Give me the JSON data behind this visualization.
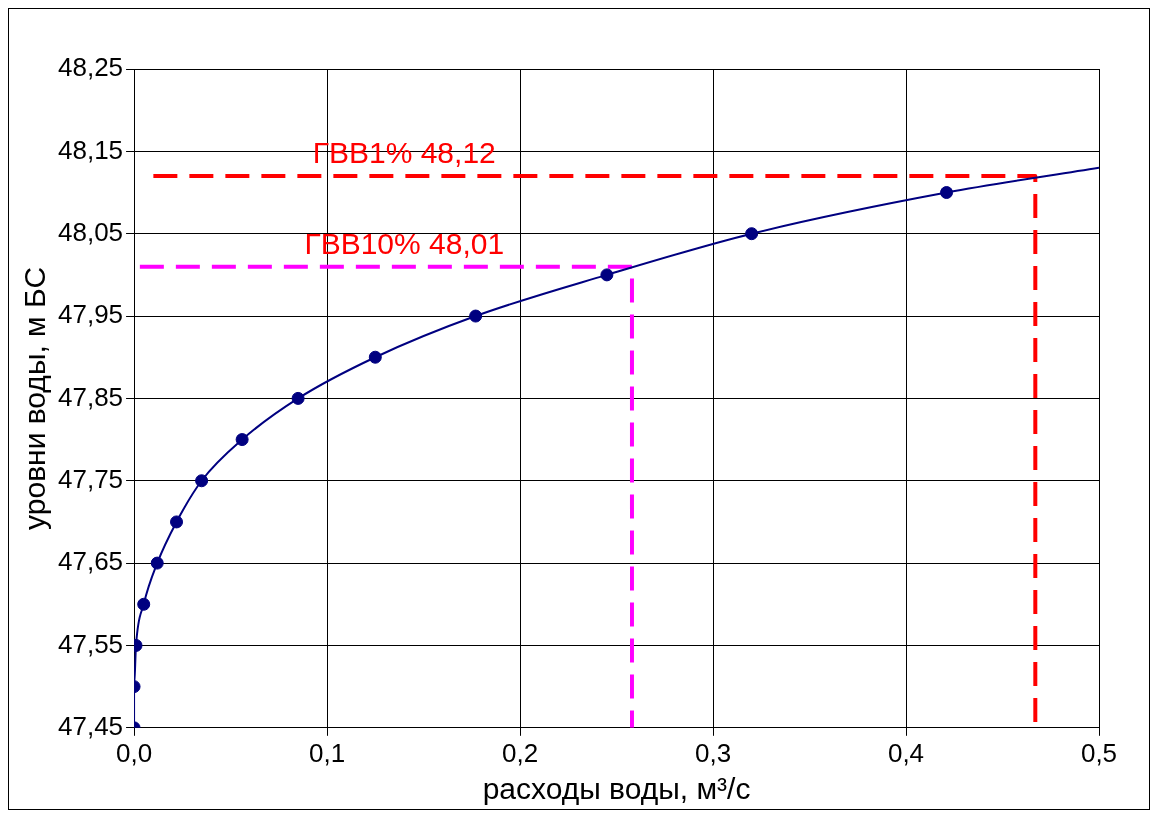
{
  "chart_data": {
    "type": "line",
    "xlabel": "расходы воды, м³/с",
    "ylabel": "уровни воды, м БС",
    "xlim": [
      0,
      0.5
    ],
    "ylim": [
      47.45,
      48.25
    ],
    "xticks": [
      {
        "value": 0,
        "label": "0,0"
      },
      {
        "value": 0.1,
        "label": "0,1"
      },
      {
        "value": 0.2,
        "label": "0,2"
      },
      {
        "value": 0.3,
        "label": "0,3"
      },
      {
        "value": 0.4,
        "label": "0,4"
      },
      {
        "value": 0.5,
        "label": "0,5"
      }
    ],
    "yticks": [
      {
        "value": 47.45,
        "label": "47,45"
      },
      {
        "value": 47.55,
        "label": "47,55"
      },
      {
        "value": 47.65,
        "label": "47,65"
      },
      {
        "value": 47.75,
        "label": "47,75"
      },
      {
        "value": 47.85,
        "label": "47,85"
      },
      {
        "value": 47.95,
        "label": "47,95"
      },
      {
        "value": 48.05,
        "label": "48,05"
      },
      {
        "value": 48.15,
        "label": "48,15"
      },
      {
        "value": 48.25,
        "label": "48,25"
      }
    ],
    "grid": true,
    "legend": false,
    "series": [
      {
        "type": "line",
        "color": "#000080",
        "marker": "none",
        "line_style": "solid",
        "x": [
          0,
          0,
          0.001,
          0.005,
          0.012,
          0.022,
          0.035,
          0.056,
          0.085,
          0.125,
          0.177,
          0.245,
          0.32,
          0.421,
          0.5
        ],
        "values": [
          47.45,
          47.5,
          47.55,
          47.6,
          47.65,
          47.7,
          47.75,
          47.8,
          47.85,
          47.9,
          47.95,
          48.0,
          48.05,
          48.1,
          48.13
        ]
      },
      {
        "type": "scatter",
        "color": "#000080",
        "marker": "circle",
        "x": [
          0,
          0,
          0.001,
          0.005,
          0.012,
          0.022,
          0.035,
          0.056,
          0.085,
          0.125,
          0.177,
          0.245,
          0.32,
          0.421
        ],
        "values": [
          47.45,
          47.5,
          47.55,
          47.6,
          47.65,
          47.7,
          47.75,
          47.8,
          47.85,
          47.9,
          47.95,
          48.0,
          48.05,
          48.1
        ]
      },
      {
        "type": "line",
        "color": "#ff0000",
        "marker": "none",
        "line_style": "dashed",
        "x": [
          0.01,
          0.467,
          0.467
        ],
        "values": [
          48.12,
          48.12,
          47.45
        ]
      },
      {
        "type": "line",
        "color": "#ff00ff",
        "marker": "none",
        "line_style": "dashed",
        "x": [
          0.003,
          0.258,
          0.258
        ],
        "values": [
          48.01,
          48.01,
          47.45
        ]
      }
    ],
    "annotations": [
      {
        "text": "ГВВ1% 48,12",
        "x": 0.14,
        "y": 48.12
      },
      {
        "text": "ГВВ10% 48,01",
        "x": 0.14,
        "y": 48.01
      }
    ]
  }
}
